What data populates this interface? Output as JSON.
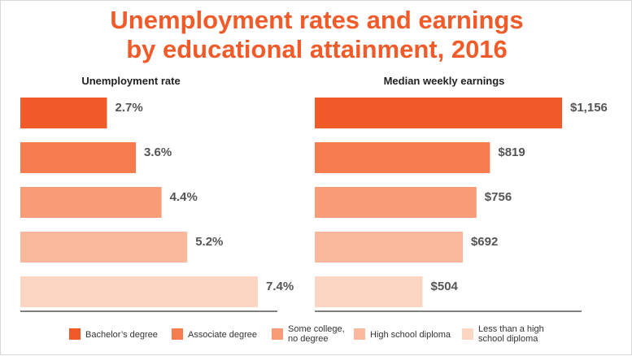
{
  "header": {
    "title_line1": "Unemployment rates and earnings",
    "title_line2": "by educational attainment, 2016"
  },
  "colors": {
    "title": "#f15a29",
    "series": [
      "#f15a29",
      "#f47c4f",
      "#f79c76",
      "#fab99c",
      "#fcd5c3"
    ],
    "axis": "#333333"
  },
  "chart_data": [
    {
      "type": "bar",
      "orientation": "horizontal",
      "title": "Unemployment rate",
      "categories": [
        "Bachelor's degree",
        "Associate degree",
        "Some college, no degree",
        "High school diploma",
        "Less than a high school diploma"
      ],
      "values": [
        2.7,
        3.6,
        4.4,
        5.2,
        7.4
      ],
      "labels": [
        "2.7%",
        "3.6%",
        "4.4%",
        "5.2%",
        "7.4%"
      ],
      "xlim": [
        0,
        7.4
      ],
      "grid": false
    },
    {
      "type": "bar",
      "orientation": "horizontal",
      "title": "Median weekly earnings",
      "categories": [
        "Bachelor's degree",
        "Associate degree",
        "Some college, no degree",
        "High school diploma",
        "Less than a high school diploma"
      ],
      "values": [
        1156,
        819,
        756,
        692,
        504
      ],
      "labels": [
        "$1,156",
        "$819",
        "$756",
        "$692",
        "$504"
      ],
      "xlim": [
        0,
        1156
      ],
      "grid": false
    }
  ],
  "legend": {
    "placement": "bottom",
    "items": [
      {
        "lines": [
          "Bachelor’s degree"
        ]
      },
      {
        "lines": [
          "Associate degree"
        ]
      },
      {
        "lines": [
          "Some college,",
          "no degree"
        ]
      },
      {
        "lines": [
          "High school diploma"
        ]
      },
      {
        "lines": [
          "Less than a high",
          "school diploma"
        ]
      }
    ]
  }
}
